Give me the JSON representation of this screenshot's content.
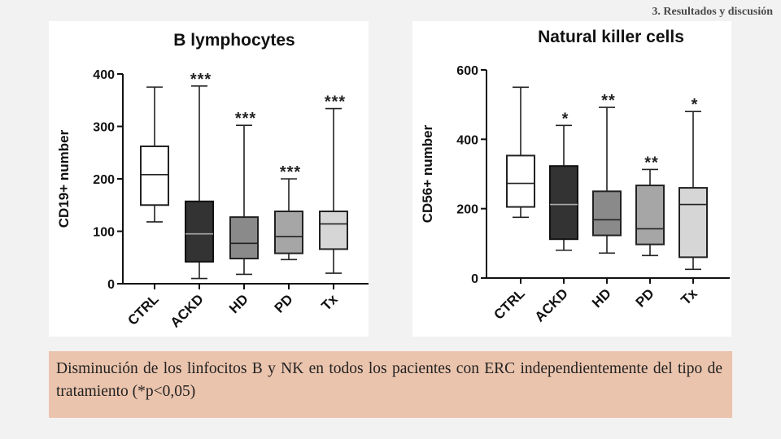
{
  "header": {
    "section_title": "3. Resultados y discusión"
  },
  "caption": {
    "text": "Disminución de los linfocitos B y NK en todos los pacientes con ERC independientemente del tipo de tratamiento (*p<0,05)"
  },
  "chart_data": [
    {
      "type": "box",
      "title": "B lymphocytes",
      "xlabel": "",
      "ylabel": "CD19+ number",
      "ylim": [
        0,
        400
      ],
      "yticks": [
        0,
        100,
        200,
        300,
        400
      ],
      "categories": [
        "CTRL",
        "ACKD",
        "HD",
        "PD",
        "Tx"
      ],
      "series": [
        {
          "name": "CTRL",
          "min": 118,
          "q1": 150,
          "median": 208,
          "q3": 262,
          "max": 375,
          "significance": "",
          "fill": "#ffffff"
        },
        {
          "name": "ACKD",
          "min": 10,
          "q1": 42,
          "median": 95,
          "q3": 157,
          "max": 377,
          "significance": "***",
          "fill": "#333333"
        },
        {
          "name": "HD",
          "min": 18,
          "q1": 48,
          "median": 77,
          "q3": 127,
          "max": 302,
          "significance": "***",
          "fill": "#8a8a8a"
        },
        {
          "name": "PD",
          "min": 46,
          "q1": 58,
          "median": 90,
          "q3": 138,
          "max": 200,
          "significance": "***",
          "fill": "#a6a6a6"
        },
        {
          "name": "Tx",
          "min": 20,
          "q1": 66,
          "median": 114,
          "q3": 138,
          "max": 334,
          "significance": "***",
          "fill": "#d6d6d6"
        }
      ]
    },
    {
      "type": "box",
      "title": "Natural killer cells",
      "xlabel": "",
      "ylabel": "CD56+ number",
      "ylim": [
        0,
        600
      ],
      "yticks": [
        0,
        200,
        400,
        600
      ],
      "categories": [
        "CTRL",
        "ACKD",
        "HD",
        "PD",
        "Tx"
      ],
      "series": [
        {
          "name": "CTRL",
          "min": 175,
          "q1": 205,
          "median": 273,
          "q3": 353,
          "max": 550,
          "significance": "",
          "fill": "#ffffff"
        },
        {
          "name": "ACKD",
          "min": 80,
          "q1": 112,
          "median": 212,
          "q3": 323,
          "max": 440,
          "significance": "*",
          "fill": "#333333"
        },
        {
          "name": "HD",
          "min": 72,
          "q1": 123,
          "median": 168,
          "q3": 250,
          "max": 492,
          "significance": "**",
          "fill": "#8a8a8a"
        },
        {
          "name": "PD",
          "min": 65,
          "q1": 97,
          "median": 142,
          "q3": 267,
          "max": 313,
          "significance": "**",
          "fill": "#a6a6a6"
        },
        {
          "name": "Tx",
          "min": 25,
          "q1": 60,
          "median": 212,
          "q3": 260,
          "max": 480,
          "significance": "*",
          "fill": "#d6d6d6"
        }
      ]
    }
  ]
}
